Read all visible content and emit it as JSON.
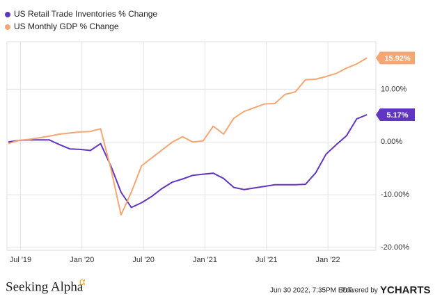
{
  "chart_data": {
    "type": "line",
    "categories": [
      null,
      null,
      "Jul '19",
      null,
      null,
      null,
      null,
      null,
      "Jan '20",
      null,
      null,
      null,
      null,
      null,
      "Jul '20",
      null,
      null,
      null,
      null,
      null,
      "Jan '21",
      null,
      null,
      null,
      null,
      null,
      "Jul '21",
      null,
      null,
      null,
      null,
      null,
      "Jan '22",
      null,
      null,
      null
    ],
    "series": [
      {
        "name": "US Retail Trade Inventories % Change",
        "color": "#5f35c2",
        "values": [
          0,
          0.3,
          0.4,
          0.4,
          0.4,
          -0.5,
          -1.3,
          -1.4,
          -1.6,
          -0.3,
          -4.5,
          -9.5,
          -12.4,
          -11.5,
          -10.3,
          -8.8,
          -7.6,
          -7,
          -6.3,
          -6.1,
          -5.9,
          -6.9,
          -8.6,
          -9,
          -8.7,
          -8.4,
          -8.1,
          -8.1,
          -8.1,
          -8.0,
          -5.8,
          -2.3,
          -0.5,
          1.2,
          4.4,
          5.17
        ],
        "value_labels": {
          "35": "5.17%"
        }
      },
      {
        "name": "US Monthly GDP % Change",
        "color": "#f6a672",
        "values": [
          -0.3,
          0.3,
          0.5,
          0.8,
          1.1,
          1.5,
          1.7,
          1.9,
          2.0,
          2.5,
          -5,
          -13.8,
          -9.5,
          -4.5,
          -3,
          -1.5,
          0,
          1,
          0,
          0.2,
          3,
          1.5,
          4.5,
          5.8,
          6.5,
          7.2,
          7.3,
          9,
          9.5,
          11.8,
          11.9,
          12.4,
          13,
          14,
          14.8,
          15.92
        ],
        "value_labels": {
          "35": "15.92%"
        }
      }
    ],
    "ylim": [
      -20.5,
      19
    ],
    "yticks": [
      {
        "value": -20,
        "label": "-20.00%"
      },
      {
        "value": -10,
        "label": "-10.00%"
      },
      {
        "value": 0,
        "label": "0.00%"
      },
      {
        "value": 10,
        "label": "10.00%"
      }
    ],
    "grid": true,
    "legend": "top-left",
    "brand": "Seeking Alpha",
    "brand_mark": "α",
    "timestamp": "Jun 30 2022, 7:35PM EDT.",
    "powered": "Powered by",
    "provider": "YCHARTS"
  }
}
